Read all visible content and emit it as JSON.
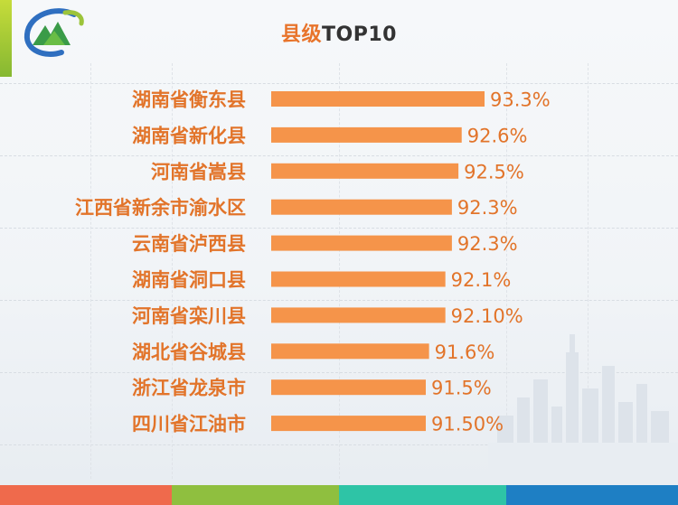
{
  "title": {
    "zh": "县级",
    "en": "TOP10"
  },
  "colors": {
    "bar": "#f5944a",
    "label": "#e2742a",
    "accent_green": "#9cc43a",
    "bottom": [
      "#ef6a4c",
      "#8fbf3f",
      "#2ec4a6",
      "#1e7fc4"
    ]
  },
  "chart_data": {
    "type": "bar",
    "orientation": "horizontal",
    "title": "县级TOP10",
    "categories": [
      "湖南省衡东县",
      "湖南省新化县",
      "河南省嵩县",
      "江西省新余市渝水区",
      "云南省泸西县",
      "湖南省洞口县",
      "河南省栾川县",
      "湖北省谷城县",
      "浙江省龙泉市",
      "四川省江油市"
    ],
    "values": [
      93.3,
      92.6,
      92.5,
      92.3,
      92.3,
      92.1,
      92.1,
      91.6,
      91.5,
      91.5
    ],
    "value_labels": [
      "93.3%",
      "92.6%",
      "92.5%",
      "92.3%",
      "92.3%",
      "92.1%",
      "92.10%",
      "91.6%",
      "91.5%",
      "91.50%"
    ],
    "unit": "%",
    "grid": false
  }
}
